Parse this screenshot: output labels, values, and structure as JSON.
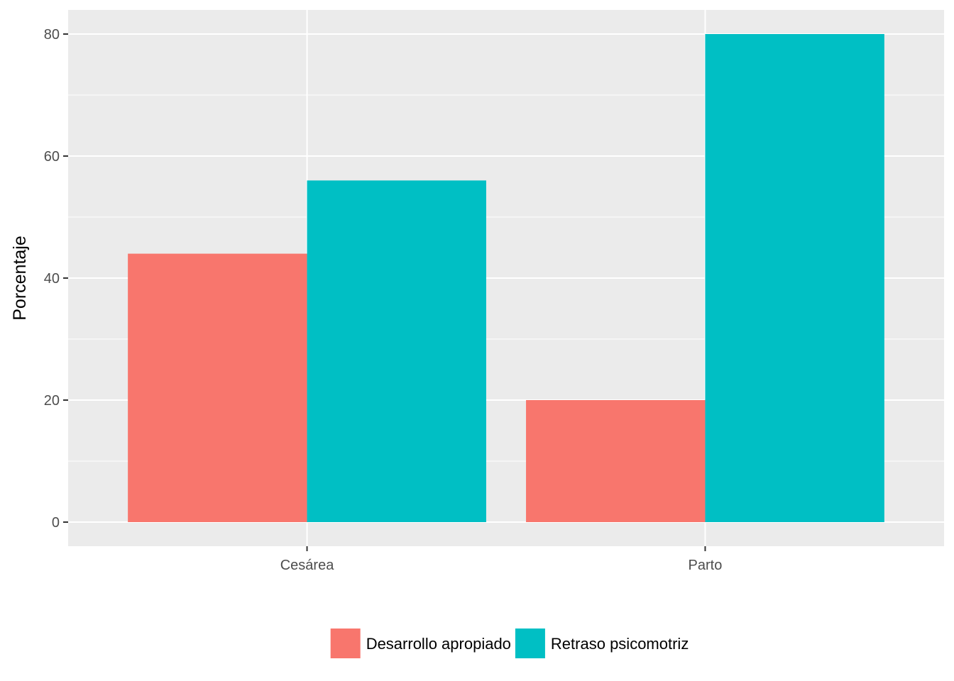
{
  "chart_data": {
    "type": "bar",
    "categories": [
      "Cesárea",
      "Parto"
    ],
    "series": [
      {
        "name": "Desarrollo apropiado",
        "values": [
          44,
          20
        ],
        "color": "#F8766D"
      },
      {
        "name": "Retraso psicomotriz",
        "values": [
          56,
          80
        ],
        "color": "#00BFC4"
      }
    ],
    "xlabel": "",
    "ylabel": "Porcentaje",
    "ylim": [
      0,
      80
    ],
    "yticks": [
      0,
      20,
      40,
      60,
      80
    ],
    "grid": true,
    "legend_position": "bottom",
    "panel_color": "#EBEBEB",
    "grid_color": "#FFFFFF"
  }
}
